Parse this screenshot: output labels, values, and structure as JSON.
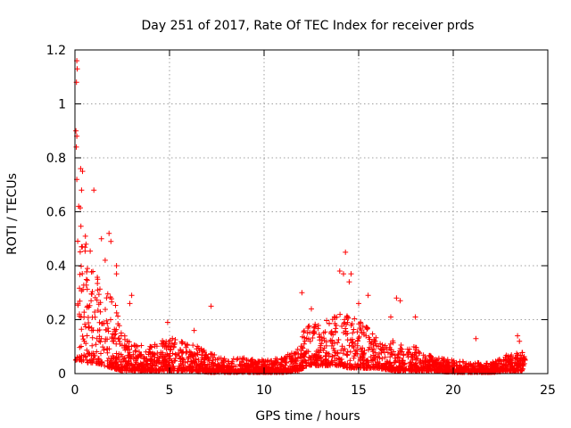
{
  "chart_data": {
    "type": "scatter",
    "title": "Day 251 of 2017, Rate Of TEC Index for receiver prds",
    "xlabel": "GPS time / hours",
    "ylabel": "ROTI / TECUs",
    "xlim": [
      0,
      25
    ],
    "ylim": [
      0,
      1.2
    ],
    "x_ticks": [
      0,
      5,
      10,
      15,
      20,
      25
    ],
    "x_tick_labels": [
      "0",
      "5",
      "10",
      "15",
      "20",
      "25"
    ],
    "y_ticks": [
      0,
      0.2,
      0.4,
      0.6,
      0.8,
      1,
      1.2
    ],
    "y_tick_labels": [
      "0",
      "0.2",
      "0.4",
      "0.6",
      "0.8",
      "1",
      "1.2"
    ],
    "grid": true,
    "marker": "+",
    "color": "#ff0000",
    "series": [
      {
        "name": "ROTI",
        "envelope": [
          {
            "x": 0.0,
            "low": 0.05,
            "high": 0.6
          },
          {
            "x": 0.25,
            "low": 0.05,
            "high": 0.65
          },
          {
            "x": 0.5,
            "low": 0.04,
            "high": 0.55
          },
          {
            "x": 1.0,
            "low": 0.04,
            "high": 0.4
          },
          {
            "x": 1.5,
            "low": 0.03,
            "high": 0.3
          },
          {
            "x": 2.0,
            "low": 0.02,
            "high": 0.3
          },
          {
            "x": 2.5,
            "low": 0.01,
            "high": 0.15
          },
          {
            "x": 3.0,
            "low": 0.01,
            "high": 0.12
          },
          {
            "x": 4.0,
            "low": 0.01,
            "high": 0.1
          },
          {
            "x": 5.0,
            "low": 0.01,
            "high": 0.14
          },
          {
            "x": 6.0,
            "low": 0.01,
            "high": 0.12
          },
          {
            "x": 7.0,
            "low": 0.005,
            "high": 0.08
          },
          {
            "x": 8.0,
            "low": 0.005,
            "high": 0.06
          },
          {
            "x": 9.0,
            "low": 0.005,
            "high": 0.06
          },
          {
            "x": 10.0,
            "low": 0.005,
            "high": 0.05
          },
          {
            "x": 11.0,
            "low": 0.005,
            "high": 0.06
          },
          {
            "x": 11.8,
            "low": 0.01,
            "high": 0.1
          },
          {
            "x": 12.3,
            "low": 0.03,
            "high": 0.2
          },
          {
            "x": 13.0,
            "low": 0.03,
            "high": 0.18
          },
          {
            "x": 14.0,
            "low": 0.03,
            "high": 0.25
          },
          {
            "x": 14.5,
            "low": 0.02,
            "high": 0.22
          },
          {
            "x": 15.0,
            "low": 0.02,
            "high": 0.2
          },
          {
            "x": 16.0,
            "low": 0.02,
            "high": 0.14
          },
          {
            "x": 17.0,
            "low": 0.01,
            "high": 0.12
          },
          {
            "x": 18.0,
            "low": 0.01,
            "high": 0.1
          },
          {
            "x": 19.0,
            "low": 0.01,
            "high": 0.06
          },
          {
            "x": 20.0,
            "low": 0.005,
            "high": 0.05
          },
          {
            "x": 21.0,
            "low": 0.005,
            "high": 0.04
          },
          {
            "x": 22.0,
            "low": 0.005,
            "high": 0.04
          },
          {
            "x": 23.0,
            "low": 0.01,
            "high": 0.08
          },
          {
            "x": 23.8,
            "low": 0.01,
            "high": 0.08
          }
        ],
        "notable_points": [
          {
            "x": 0.1,
            "y": 1.16
          },
          {
            "x": 0.12,
            "y": 1.13
          },
          {
            "x": 0.08,
            "y": 1.08
          },
          {
            "x": 0.05,
            "y": 0.9
          },
          {
            "x": 0.1,
            "y": 0.88
          },
          {
            "x": 0.07,
            "y": 0.84
          },
          {
            "x": 0.3,
            "y": 0.76
          },
          {
            "x": 0.4,
            "y": 0.75
          },
          {
            "x": 0.35,
            "y": 0.68
          },
          {
            "x": 0.1,
            "y": 0.72
          },
          {
            "x": 0.2,
            "y": 0.62
          },
          {
            "x": 1.0,
            "y": 0.68
          },
          {
            "x": 1.4,
            "y": 0.5
          },
          {
            "x": 1.8,
            "y": 0.52
          },
          {
            "x": 1.9,
            "y": 0.49
          },
          {
            "x": 2.2,
            "y": 0.4
          },
          {
            "x": 2.2,
            "y": 0.37
          },
          {
            "x": 1.6,
            "y": 0.42
          },
          {
            "x": 3.0,
            "y": 0.29
          },
          {
            "x": 7.2,
            "y": 0.25
          },
          {
            "x": 14.0,
            "y": 0.38
          },
          {
            "x": 14.2,
            "y": 0.37
          },
          {
            "x": 14.3,
            "y": 0.45
          },
          {
            "x": 14.5,
            "y": 0.34
          },
          {
            "x": 14.6,
            "y": 0.37
          },
          {
            "x": 15.5,
            "y": 0.29
          },
          {
            "x": 17.0,
            "y": 0.28
          },
          {
            "x": 17.2,
            "y": 0.27
          },
          {
            "x": 16.7,
            "y": 0.21
          },
          {
            "x": 12.0,
            "y": 0.3
          },
          {
            "x": 12.5,
            "y": 0.24
          },
          {
            "x": 15.0,
            "y": 0.26
          },
          {
            "x": 18.0,
            "y": 0.21
          },
          {
            "x": 21.2,
            "y": 0.13
          },
          {
            "x": 23.4,
            "y": 0.14
          },
          {
            "x": 23.5,
            "y": 0.12
          },
          {
            "x": 4.9,
            "y": 0.19
          },
          {
            "x": 6.3,
            "y": 0.16
          },
          {
            "x": 2.9,
            "y": 0.26
          },
          {
            "x": 1.2,
            "y": 0.31
          }
        ]
      }
    ]
  }
}
